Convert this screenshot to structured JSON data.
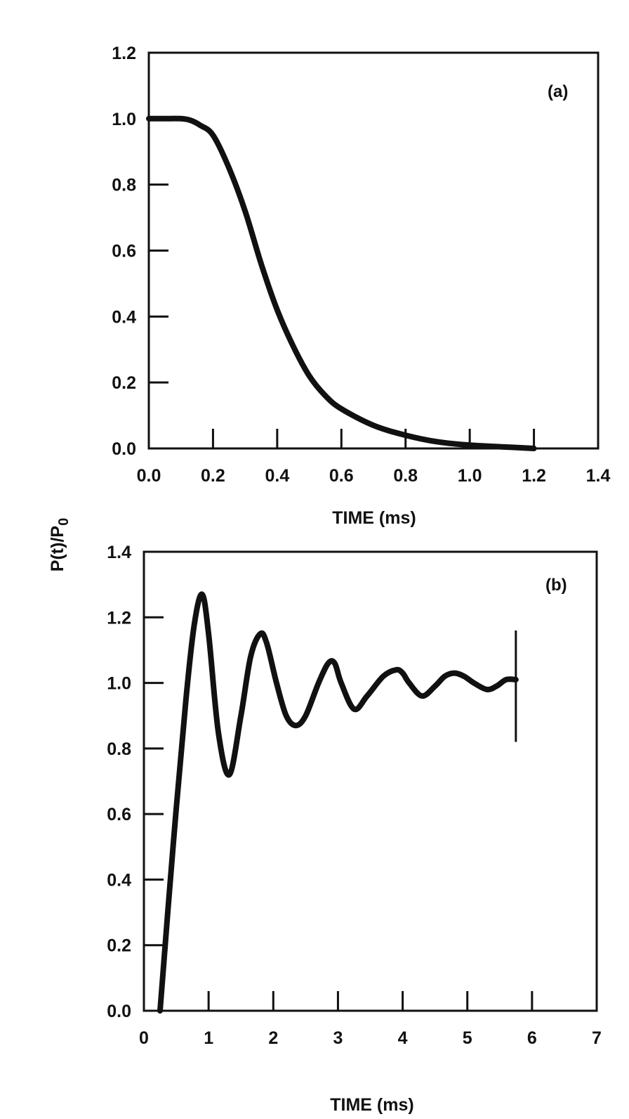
{
  "chart_data": [
    {
      "type": "line",
      "panel_label": "(a)",
      "xlabel": "TIME (ms)",
      "ylabel": "P(t)/P",
      "ylabel_sub": "0",
      "xlim": [
        0,
        1.4
      ],
      "ylim": [
        0,
        1.2
      ],
      "x_ticks": [
        0.0,
        0.2,
        0.4,
        0.6,
        0.8,
        1.0,
        1.2,
        1.4
      ],
      "x_tick_labels": [
        "0.0",
        "0.2",
        "0.4",
        "0.6",
        "0.8",
        "1.0",
        "1.2",
        "1.4"
      ],
      "y_ticks": [
        0.0,
        0.2,
        0.4,
        0.6,
        0.8,
        1.0,
        1.2
      ],
      "y_tick_labels": [
        "0.0",
        "0.2",
        "0.4",
        "0.6",
        "0.8",
        "1.0",
        "1.2"
      ],
      "grid": false,
      "series": [
        {
          "color": "#111111",
          "x": [
            0.0,
            0.05,
            0.1,
            0.13,
            0.16,
            0.2,
            0.25,
            0.3,
            0.35,
            0.4,
            0.45,
            0.5,
            0.55,
            0.6,
            0.7,
            0.8,
            0.9,
            1.0,
            1.1,
            1.2
          ],
          "y": [
            1.0,
            1.0,
            1.0,
            0.995,
            0.98,
            0.95,
            0.85,
            0.72,
            0.56,
            0.42,
            0.31,
            0.22,
            0.16,
            0.12,
            0.07,
            0.04,
            0.02,
            0.01,
            0.005,
            0.0
          ]
        }
      ]
    },
    {
      "type": "line",
      "panel_label": "(b)",
      "xlabel": "TIME (ms)",
      "ylabel": "",
      "xlim": [
        0,
        7
      ],
      "ylim": [
        0,
        1.4
      ],
      "x_ticks": [
        0,
        1,
        2,
        3,
        4,
        5,
        6,
        7
      ],
      "x_tick_labels": [
        "0",
        "1",
        "2",
        "3",
        "4",
        "5",
        "6",
        "7"
      ],
      "y_ticks": [
        0.0,
        0.2,
        0.4,
        0.6,
        0.8,
        1.0,
        1.2,
        1.4
      ],
      "y_tick_labels": [
        "0.0",
        "0.2",
        "0.4",
        "0.6",
        "0.8",
        "1.0",
        "1.2",
        "1.4"
      ],
      "grid": false,
      "series": [
        {
          "color": "#111111",
          "x": [
            0.25,
            0.45,
            0.65,
            0.78,
            0.9,
            1.0,
            1.15,
            1.32,
            1.5,
            1.65,
            1.8,
            1.9,
            2.05,
            2.2,
            2.35,
            2.5,
            2.7,
            2.85,
            2.95,
            3.05,
            3.25,
            3.45,
            3.7,
            3.9,
            4.0,
            4.1,
            4.3,
            4.5,
            4.65,
            4.8,
            4.95,
            5.1,
            5.3,
            5.45,
            5.6,
            5.75
          ],
          "y": [
            0.0,
            0.5,
            0.95,
            1.18,
            1.27,
            1.15,
            0.85,
            0.72,
            0.9,
            1.08,
            1.15,
            1.12,
            1.0,
            0.9,
            0.87,
            0.9,
            1.0,
            1.06,
            1.06,
            1.0,
            0.92,
            0.96,
            1.02,
            1.04,
            1.03,
            1.0,
            0.96,
            0.99,
            1.02,
            1.03,
            1.02,
            1.0,
            0.98,
            0.99,
            1.01,
            1.01
          ]
        }
      ],
      "end_marker": {
        "x": 5.75,
        "y_range": [
          0.82,
          1.16
        ]
      }
    }
  ]
}
